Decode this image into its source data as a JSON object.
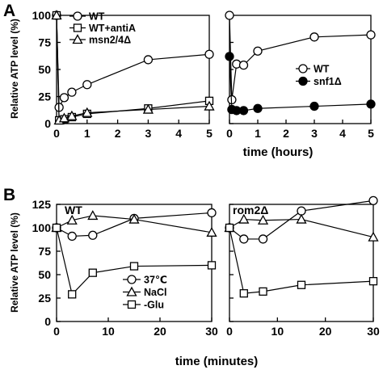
{
  "panels": [
    "A",
    "B"
  ],
  "chart_data": [
    {
      "type": "line",
      "panel": "A",
      "xlabel": "time (hours)",
      "ylabel": "Relative ATP level (%)",
      "xlim": [
        0,
        5
      ],
      "ylim": [
        0,
        100
      ],
      "xticks": [
        0,
        1,
        2,
        3,
        4,
        5
      ],
      "yticks": [
        0,
        25,
        50,
        75,
        100
      ],
      "legend_position": "top-left",
      "series": [
        {
          "name": "WT",
          "marker": "open-circle",
          "x": [
            0,
            0.083,
            0.25,
            0.5,
            1,
            3,
            5
          ],
          "y": [
            100,
            15,
            24,
            29,
            36,
            59,
            64
          ]
        },
        {
          "name": "WT+antiA",
          "marker": "open-square",
          "x": [
            0,
            0.083,
            0.25,
            0.5,
            1,
            3,
            5
          ],
          "y": [
            100,
            3,
            4,
            6,
            9,
            14,
            21
          ]
        },
        {
          "name": "msn2/4Δ",
          "marker": "open-triangle",
          "x": [
            0,
            0.083,
            0.25,
            0.5,
            1,
            3,
            5
          ],
          "y": [
            100,
            3,
            5,
            7,
            10,
            13,
            16
          ]
        }
      ]
    },
    {
      "type": "line",
      "panel": "A",
      "xlabel": "time (hours)",
      "ylabel": "",
      "xlim": [
        0,
        5
      ],
      "ylim": [
        0,
        100
      ],
      "xticks": [
        0,
        1,
        2,
        3,
        4,
        5
      ],
      "yticks": [
        0,
        25,
        50,
        75,
        100
      ],
      "legend_position": "middle-right",
      "series": [
        {
          "name": "WT",
          "marker": "open-circle",
          "x": [
            0,
            0.083,
            0.25,
            0.5,
            1,
            3,
            5
          ],
          "y": [
            100,
            22,
            55,
            54,
            67,
            80,
            82
          ]
        },
        {
          "name": "snf1Δ",
          "marker": "filled-circle",
          "x": [
            0,
            0.083,
            0.25,
            0.5,
            1,
            3,
            5
          ],
          "y": [
            62,
            13,
            12,
            12,
            14,
            16,
            18
          ]
        }
      ]
    },
    {
      "type": "line",
      "panel": "B",
      "title": "WT",
      "xlabel": "time (minutes)",
      "ylabel": "Relative ATP level (%)",
      "xlim": [
        0,
        30
      ],
      "ylim": [
        0,
        125
      ],
      "xticks": [
        0,
        10,
        20,
        30
      ],
      "yticks": [
        0,
        25,
        50,
        75,
        100,
        125
      ],
      "legend_position": "bottom-right",
      "series": [
        {
          "name": "37℃",
          "marker": "open-circle",
          "x": [
            0,
            3,
            7,
            15,
            30
          ],
          "y": [
            100,
            91,
            92,
            110,
            116
          ]
        },
        {
          "name": "NaCl",
          "marker": "open-triangle",
          "x": [
            0,
            3,
            7,
            15,
            30
          ],
          "y": [
            100,
            108,
            113,
            109,
            95
          ]
        },
        {
          "name": "-Glu",
          "marker": "open-square",
          "x": [
            0,
            3,
            7,
            15,
            30
          ],
          "y": [
            100,
            29,
            52,
            59,
            60
          ]
        }
      ]
    },
    {
      "type": "line",
      "panel": "B",
      "title": "rom2Δ",
      "xlabel": "time (minutes)",
      "ylabel": "",
      "xlim": [
        0,
        30
      ],
      "ylim": [
        0,
        125
      ],
      "xticks": [
        0,
        10,
        20,
        30
      ],
      "yticks": [
        0,
        25,
        50,
        75,
        100,
        125
      ],
      "series": [
        {
          "name": "37℃",
          "marker": "open-circle",
          "x": [
            0,
            3,
            7,
            15,
            30
          ],
          "y": [
            100,
            88,
            88,
            118,
            129
          ]
        },
        {
          "name": "NaCl",
          "marker": "open-triangle",
          "x": [
            0,
            3,
            7,
            15,
            30
          ],
          "y": [
            100,
            109,
            108,
            109,
            90
          ]
        },
        {
          "name": "-Glu",
          "marker": "open-square",
          "x": [
            0,
            3,
            7,
            15,
            30
          ],
          "y": [
            100,
            30,
            32,
            39,
            43
          ]
        }
      ]
    }
  ]
}
